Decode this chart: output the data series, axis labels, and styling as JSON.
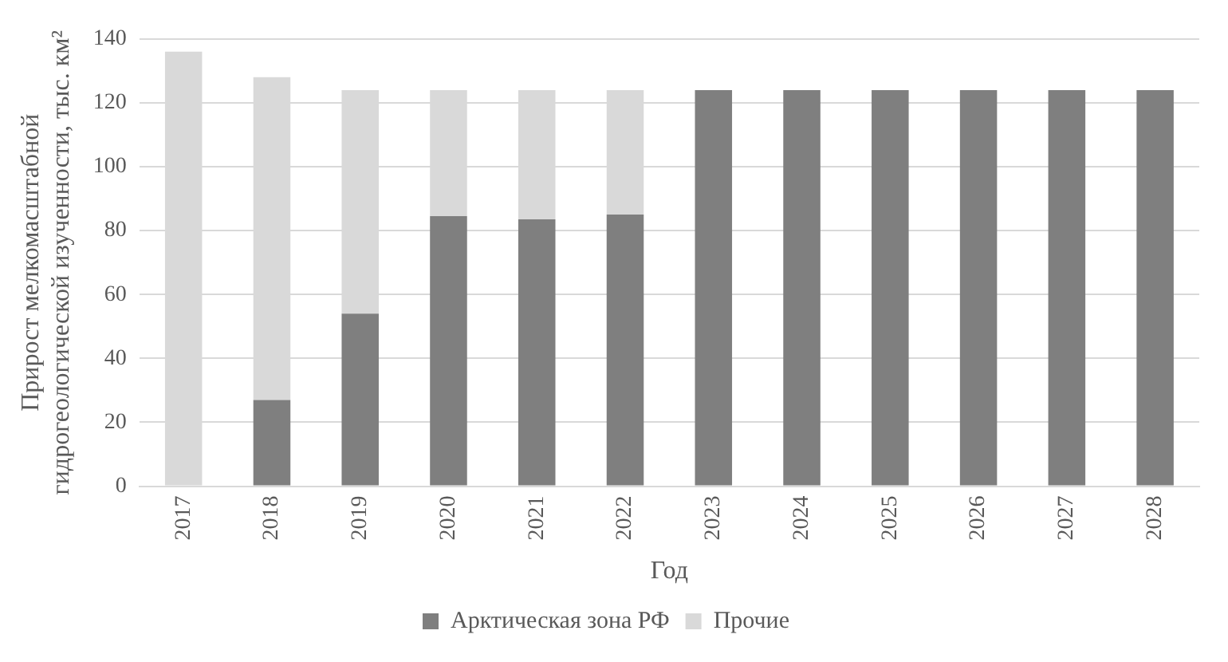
{
  "chart_data": {
    "type": "bar",
    "stacked": true,
    "xlabel": "Год",
    "ylabel": "Прирост мелкомасштабной\nгидрогеологической изученности, тыс. км²",
    "categories": [
      "2017",
      "2018",
      "2019",
      "2020",
      "2021",
      "2022",
      "2023",
      "2024",
      "2025",
      "2026",
      "2027",
      "2028"
    ],
    "series": [
      {
        "name": "Арктическая зона РФ",
        "color": "#7f7f7f",
        "values": [
          0,
          27,
          54,
          84.5,
          83.5,
          85,
          124,
          124,
          124,
          124,
          124,
          124
        ]
      },
      {
        "name": "Прочие",
        "color": "#d9d9d9",
        "values": [
          136,
          101,
          70,
          39.5,
          40.5,
          39,
          0,
          0,
          0,
          0,
          0,
          0
        ]
      }
    ],
    "ylim": [
      0,
      140
    ],
    "yticks": [
      0,
      20,
      40,
      60,
      80,
      100,
      120,
      140
    ],
    "grid": "y",
    "legend": "bottom"
  }
}
